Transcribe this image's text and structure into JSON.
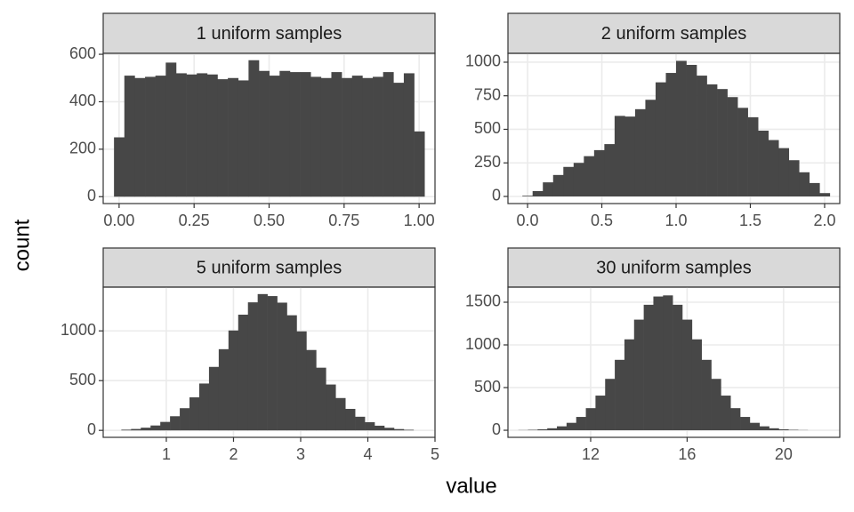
{
  "xlabel": "value",
  "ylabel": "count",
  "chart_data": [
    {
      "type": "histogram",
      "title": "1 uniform samples",
      "color": "#474747",
      "grid": true,
      "bins": [
        -0.017,
        0.0175,
        0.052,
        0.0865,
        0.121,
        0.1555,
        0.19,
        0.2245,
        0.259,
        0.2935,
        0.328,
        0.3625,
        0.397,
        0.4315,
        0.466,
        0.5005,
        0.535,
        0.5695,
        0.604,
        0.6385,
        0.673,
        0.7075,
        0.742,
        0.7765,
        0.811,
        0.8455,
        0.88,
        0.9145,
        0.949,
        0.9835,
        1.018
      ],
      "values": [
        250,
        510,
        500,
        505,
        510,
        565,
        520,
        515,
        520,
        515,
        495,
        500,
        490,
        575,
        530,
        510,
        530,
        525,
        525,
        505,
        500,
        525,
        500,
        510,
        500,
        505,
        525,
        480,
        520,
        275
      ],
      "xlim": [
        -0.053,
        1.053
      ],
      "ylim": [
        -29,
        604
      ],
      "xticks": [
        {
          "value": 0,
          "label": "0.00"
        },
        {
          "value": 0.25,
          "label": "0.25"
        },
        {
          "value": 0.5,
          "label": "0.50"
        },
        {
          "value": 0.75,
          "label": "0.75"
        },
        {
          "value": 1,
          "label": "1.00"
        }
      ],
      "yticks": [
        0,
        200,
        400,
        600
      ]
    },
    {
      "type": "histogram",
      "title": "2 uniform samples",
      "color": "#474747",
      "grid": true,
      "bins": [
        -0.035,
        0.034,
        0.103,
        0.172,
        0.241,
        0.31,
        0.379,
        0.448,
        0.517,
        0.586,
        0.655,
        0.724,
        0.793,
        0.862,
        0.931,
        1.0,
        1.069,
        1.138,
        1.207,
        1.276,
        1.345,
        1.414,
        1.483,
        1.552,
        1.621,
        1.69,
        1.759,
        1.828,
        1.897,
        1.966,
        2.035
      ],
      "values": [
        5,
        40,
        105,
        160,
        220,
        250,
        300,
        345,
        390,
        600,
        595,
        650,
        720,
        850,
        920,
        1010,
        980,
        900,
        835,
        800,
        740,
        660,
        590,
        490,
        420,
        360,
        270,
        180,
        100,
        25
      ],
      "xlim": [
        -0.132,
        2.102
      ],
      "ylim": [
        -53,
        1066
      ],
      "xticks": [
        {
          "value": 0,
          "label": "0.0"
        },
        {
          "value": 0.5,
          "label": "0.5"
        },
        {
          "value": 1,
          "label": "1.0"
        },
        {
          "value": 1.5,
          "label": "1.5"
        },
        {
          "value": 2,
          "label": "2.0"
        }
      ],
      "yticks": [
        0,
        250,
        500,
        750,
        1000
      ]
    },
    {
      "type": "histogram",
      "title": "5 uniform samples",
      "color": "#474747",
      "grid": true,
      "bins": [
        0.33,
        0.475,
        0.62,
        0.765,
        0.91,
        1.055,
        1.2,
        1.345,
        1.49,
        1.635,
        1.78,
        1.925,
        2.07,
        2.215,
        2.36,
        2.505,
        2.65,
        2.795,
        2.94,
        3.085,
        3.23,
        3.375,
        3.52,
        3.665,
        3.81,
        3.955,
        4.1,
        4.245,
        4.39,
        4.535,
        4.68
      ],
      "values": [
        7,
        14,
        27,
        49,
        85,
        142,
        223,
        332,
        471,
        638,
        816,
        1004,
        1163,
        1287,
        1370,
        1350,
        1284,
        1157,
        995,
        808,
        630,
        461,
        325,
        216,
        137,
        82,
        47,
        26,
        13,
        6
      ],
      "xlim": [
        0.06,
        5.0
      ],
      "ylim": [
        -70,
        1440
      ],
      "xticks": [
        1,
        2,
        3,
        4,
        5
      ],
      "yticks": [
        0,
        500,
        1000
      ]
    },
    {
      "type": "histogram",
      "title": "30 uniform samples",
      "color": "#474747",
      "grid": true,
      "bins": [
        9,
        9.4,
        9.8,
        10.2,
        10.6,
        11,
        11.4,
        11.8,
        12.2,
        12.6,
        13,
        13.4,
        13.8,
        14.2,
        14.6,
        15,
        15.4,
        15.8,
        16.2,
        16.6,
        17,
        17.4,
        17.8,
        18.2,
        18.6,
        19,
        19.4,
        19.8,
        20.2,
        20.6,
        21
      ],
      "values": [
        2,
        5,
        11,
        23,
        46,
        87,
        156,
        259,
        406,
        602,
        825,
        1065,
        1296,
        1470,
        1567,
        1580,
        1470,
        1296,
        1065,
        825,
        602,
        406,
        259,
        156,
        87,
        46,
        23,
        11,
        5,
        2
      ],
      "xlim": [
        8.57,
        22.33
      ],
      "ylim": [
        -83,
        1677
      ],
      "xticks": [
        12,
        16,
        20
      ],
      "yticks": [
        0,
        500,
        1000,
        1500
      ]
    }
  ]
}
